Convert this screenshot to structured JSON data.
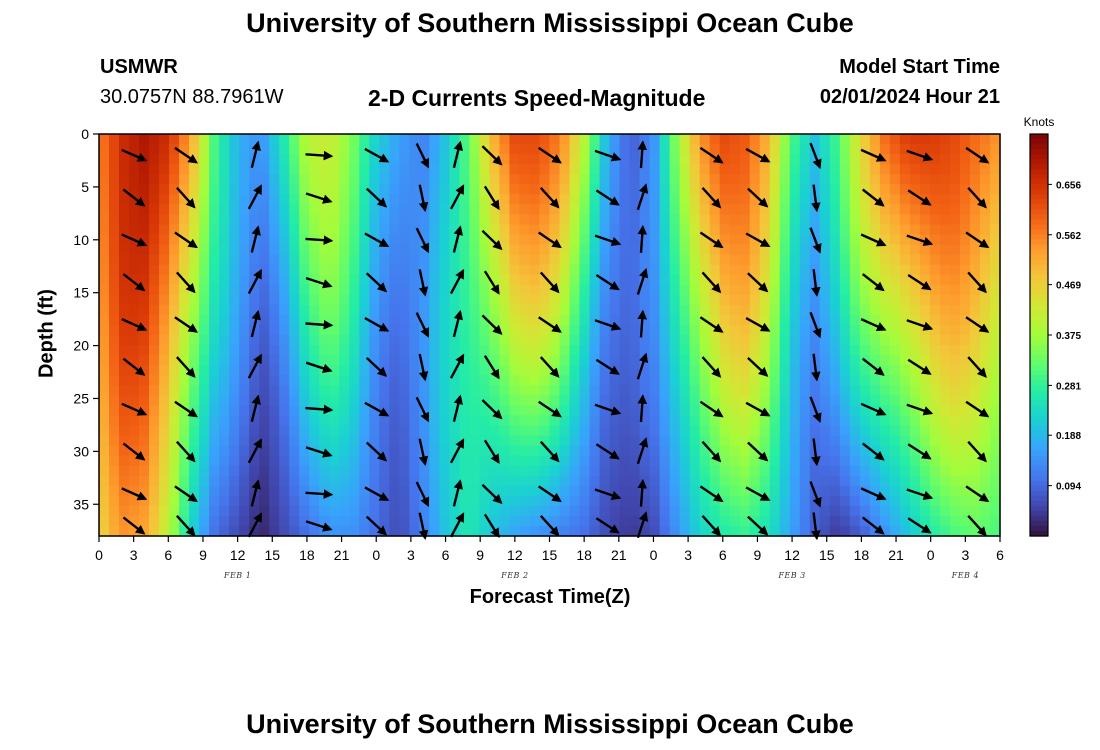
{
  "header": {
    "title": "University of Southern Mississippi Ocean Cube",
    "station": "USMWR",
    "coords": "30.0757N  88.7961W",
    "subtitle": "2-D Currents Speed-Magnitude",
    "model_label": "Model Start Time",
    "model_time": "02/01/2024 Hour 21"
  },
  "footer": {
    "title": "University of Southern Mississippi Ocean Cube"
  },
  "chart_data": {
    "type": "heatmap",
    "title": "2-D Currents Speed-Magnitude",
    "xlabel": "Forecast Time(Z)",
    "ylabel": "Depth (ft)",
    "x_ticks": [
      "0",
      "3",
      "6",
      "9",
      "12",
      "15",
      "18",
      "21",
      "0",
      "3",
      "6",
      "9",
      "12",
      "15",
      "18",
      "21",
      "0",
      "3",
      "6",
      "9",
      "12",
      "15",
      "18",
      "21",
      "0",
      "3",
      "6"
    ],
    "x_day_labels": [
      {
        "label": "FEB 1",
        "hours_from_start": 12
      },
      {
        "label": "FEB 2",
        "hours_from_start": 36
      },
      {
        "label": "FEB 3",
        "hours_from_start": 60
      },
      {
        "label": "FEB 4",
        "hours_from_start": 75
      }
    ],
    "xlim_hours": [
      0,
      78
    ],
    "y_ticks": [
      "0",
      "5",
      "10",
      "15",
      "20",
      "25",
      "30",
      "35"
    ],
    "ylim_ft": [
      0,
      38
    ],
    "y_inverted": true,
    "colorbar": {
      "unit": "Knots",
      "ticks": [
        "0.656",
        "0.562",
        "0.469",
        "0.375",
        "0.281",
        "0.188",
        "0.094"
      ],
      "range": [
        0,
        0.75
      ],
      "colors": [
        "#30123b",
        "#4145ab",
        "#4675ed",
        "#39a2fc",
        "#1bcfd4",
        "#24eca6",
        "#61fc6c",
        "#a4fc3b",
        "#d1e834",
        "#f3c63a",
        "#fe9b2d",
        "#f36315",
        "#d93806",
        "#b11901",
        "#7a0402"
      ]
    },
    "speed_pattern": {
      "hours": [
        0,
        2,
        4,
        6,
        8,
        10,
        12,
        14,
        16,
        18,
        20,
        22,
        24,
        26,
        28,
        30,
        32,
        34,
        36,
        38,
        40,
        42,
        44,
        46,
        48,
        50,
        52,
        54,
        56,
        58,
        60,
        62,
        64,
        66,
        68,
        70,
        72,
        74,
        76,
        78
      ],
      "surface_knots": [
        0.56,
        0.66,
        0.7,
        0.66,
        0.52,
        0.3,
        0.18,
        0.14,
        0.26,
        0.4,
        0.42,
        0.34,
        0.22,
        0.16,
        0.12,
        0.2,
        0.32,
        0.5,
        0.62,
        0.62,
        0.56,
        0.4,
        0.18,
        0.08,
        0.14,
        0.36,
        0.54,
        0.62,
        0.6,
        0.5,
        0.3,
        0.2,
        0.3,
        0.46,
        0.58,
        0.64,
        0.64,
        0.62,
        0.58,
        0.54
      ],
      "bottom_knots": [
        0.46,
        0.54,
        0.52,
        0.4,
        0.22,
        0.1,
        0.06,
        0.02,
        0.06,
        0.1,
        0.14,
        0.14,
        0.1,
        0.06,
        0.12,
        0.2,
        0.26,
        0.2,
        0.16,
        0.14,
        0.12,
        0.1,
        0.06,
        0.04,
        0.06,
        0.14,
        0.22,
        0.26,
        0.28,
        0.24,
        0.16,
        0.08,
        0.04,
        0.08,
        0.14,
        0.2,
        0.26,
        0.3,
        0.32,
        0.3
      ]
    },
    "vector_columns": [
      {
        "hours": 3,
        "deg": 30
      },
      {
        "hours": 7.5,
        "deg": 35
      },
      {
        "hours": 13.5,
        "deg": -80
      },
      {
        "hours": 19,
        "deg": 10
      },
      {
        "hours": 24,
        "deg": 30
      },
      {
        "hours": 28,
        "deg": 60
      },
      {
        "hours": 31,
        "deg": -70
      },
      {
        "hours": 34,
        "deg": 45
      },
      {
        "hours": 39,
        "deg": 30
      },
      {
        "hours": 44,
        "deg": 25
      },
      {
        "hours": 47,
        "deg": -85
      },
      {
        "hours": 53,
        "deg": 30
      },
      {
        "hours": 57,
        "deg": 35
      },
      {
        "hours": 62,
        "deg": 70
      },
      {
        "hours": 67,
        "deg": 20
      },
      {
        "hours": 71,
        "deg": 25
      },
      {
        "hours": 76,
        "deg": 35
      }
    ],
    "vector_depths_ft": [
      2,
      6,
      10,
      14,
      18,
      22,
      26,
      30,
      34,
      37
    ]
  }
}
